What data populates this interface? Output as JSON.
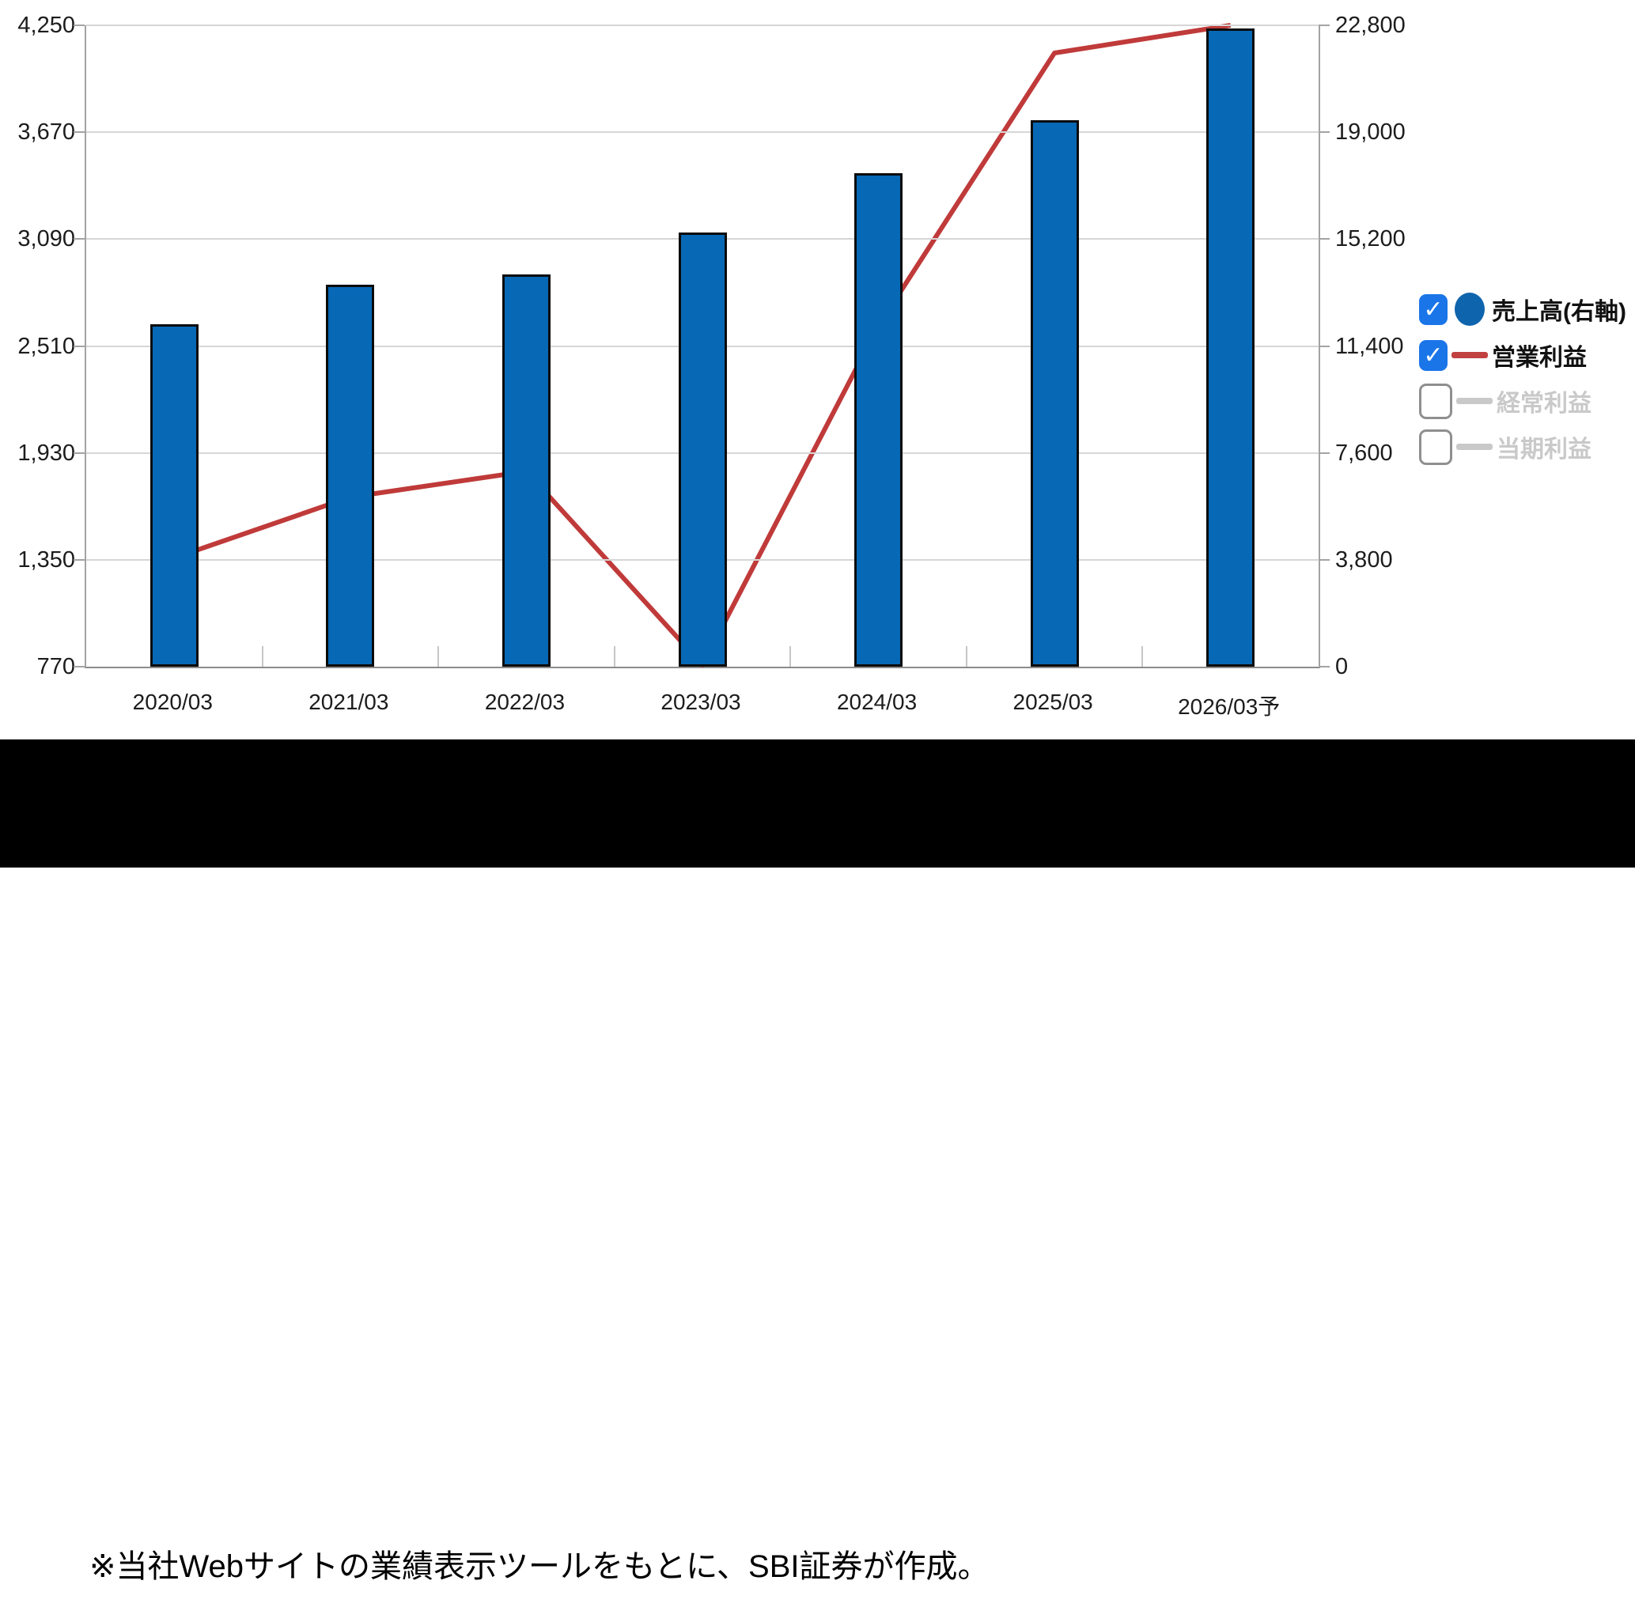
{
  "chart_data": {
    "type": "bar",
    "title": "",
    "categories": [
      "2020/03",
      "2021/03",
      "2022/03",
      "2023/03",
      "2024/03",
      "2025/03",
      "2026/03予"
    ],
    "series": [
      {
        "name": "売上高(右軸)",
        "type": "bar",
        "axis": "right",
        "color": "#0768b5",
        "values": [
          12100,
          13500,
          13850,
          15350,
          17450,
          19350,
          22600
        ]
      },
      {
        "name": "営業利益",
        "type": "line",
        "axis": "left",
        "color": "#c03a3a",
        "values": [
          1360,
          1690,
          1830,
          780,
          2620,
          4100,
          4250
        ]
      }
    ],
    "left_axis": {
      "range": [
        770,
        4250
      ],
      "tick_labels": [
        "4,250",
        "3,670",
        "3,090",
        "2,510",
        "1,930",
        "1,350",
        "770"
      ]
    },
    "right_axis": {
      "range": [
        0,
        22800
      ],
      "tick_labels": [
        "22,800",
        "19,000",
        "15,200",
        "11,400",
        "7,600",
        "3,800",
        "0"
      ]
    },
    "grid": true,
    "legend_position": "right"
  },
  "legend": {
    "items": [
      {
        "label": "売上高(右軸)",
        "checked": true,
        "disabled": false,
        "marker": "circle",
        "marker_color": "#0f65ad"
      },
      {
        "label": "営業利益",
        "checked": true,
        "disabled": false,
        "marker": "line",
        "marker_color": "#c0413f"
      },
      {
        "label": "経常利益",
        "checked": false,
        "disabled": true,
        "marker": "line",
        "marker_color": "#c9c9c9"
      },
      {
        "label": "当期利益",
        "checked": false,
        "disabled": true,
        "marker": "line",
        "marker_color": "#c9c9c9"
      }
    ],
    "check_glyph": "✓"
  },
  "note": {
    "text": "※当社Webサイトの業績表示ツールをもとに、SBI証券が作成。"
  },
  "colors": {
    "bar_fill": "#0768b5",
    "bar_border": "#0b0b0b",
    "line": "#c03a3a",
    "gridline": "#d6d6d6",
    "axis": "#a3a3a3",
    "checkbox_checked": "#1a75e8",
    "disabled_text": "#c9c9c9"
  }
}
